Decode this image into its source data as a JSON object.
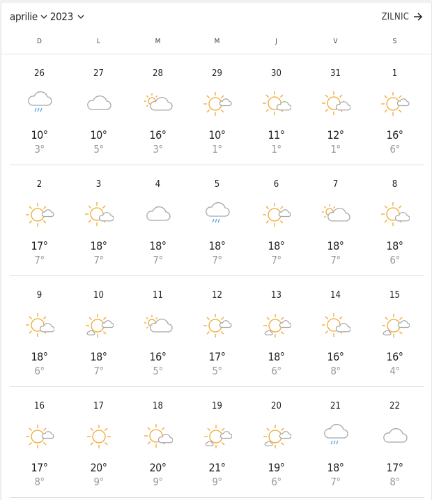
{
  "header": {
    "month": "aprilie",
    "year": "2023",
    "daily_label": "ZILNIC"
  },
  "weekdays": [
    "D",
    "L",
    "M",
    "M",
    "J",
    "V",
    "S"
  ],
  "colors": {
    "sun": "#f0a830",
    "cloud": "#a8a8a8",
    "rain": "#4a9ee0"
  },
  "weeks": [
    [
      {
        "day": "26",
        "icon": "rain",
        "high": "10°",
        "low": "3°"
      },
      {
        "day": "27",
        "icon": "cloudy",
        "high": "10°",
        "low": "5°"
      },
      {
        "day": "28",
        "icon": "partly-cloudy",
        "high": "16°",
        "low": "3°"
      },
      {
        "day": "29",
        "icon": "sun-small-cloud",
        "high": "10°",
        "low": "1°"
      },
      {
        "day": "30",
        "icon": "sun-cloud",
        "high": "11°",
        "low": "1°"
      },
      {
        "day": "31",
        "icon": "sun-cloud",
        "high": "12°",
        "low": "1°"
      },
      {
        "day": "1",
        "icon": "sun-small-cloud",
        "high": "16°",
        "low": "6°"
      }
    ],
    [
      {
        "day": "2",
        "icon": "sun-small-cloud",
        "high": "17°",
        "low": "7°"
      },
      {
        "day": "3",
        "icon": "sun-cloud",
        "high": "18°",
        "low": "7°"
      },
      {
        "day": "4",
        "icon": "cloudy",
        "high": "18°",
        "low": "7°"
      },
      {
        "day": "5",
        "icon": "rain",
        "high": "18°",
        "low": "7°"
      },
      {
        "day": "6",
        "icon": "sun-small-cloud",
        "high": "18°",
        "low": "7°"
      },
      {
        "day": "7",
        "icon": "partly-cloudy",
        "high": "18°",
        "low": "7°"
      },
      {
        "day": "8",
        "icon": "sun-cloud",
        "high": "18°",
        "low": "6°"
      }
    ],
    [
      {
        "day": "9",
        "icon": "sun-cloud",
        "high": "18°",
        "low": "6°"
      },
      {
        "day": "10",
        "icon": "sun-clouds",
        "high": "18°",
        "low": "7°"
      },
      {
        "day": "11",
        "icon": "partly-cloudy",
        "high": "16°",
        "low": "5°"
      },
      {
        "day": "12",
        "icon": "sun-small-cloud",
        "high": "17°",
        "low": "5°"
      },
      {
        "day": "13",
        "icon": "sun-clouds",
        "high": "18°",
        "low": "6°"
      },
      {
        "day": "14",
        "icon": "sun-cloud",
        "high": "16°",
        "low": "8°"
      },
      {
        "day": "15",
        "icon": "sun-clouds",
        "high": "16°",
        "low": "4°"
      }
    ],
    [
      {
        "day": "16",
        "icon": "sun-small-cloud",
        "high": "17°",
        "low": "8°"
      },
      {
        "day": "17",
        "icon": "sunny",
        "high": "20°",
        "low": "9°"
      },
      {
        "day": "18",
        "icon": "sun-cloud",
        "high": "20°",
        "low": "9°"
      },
      {
        "day": "19",
        "icon": "sun-clouds",
        "high": "21°",
        "low": "9°"
      },
      {
        "day": "20",
        "icon": "sun-clouds",
        "high": "19°",
        "low": "6°"
      },
      {
        "day": "21",
        "icon": "rain",
        "high": "18°",
        "low": "7°"
      },
      {
        "day": "22",
        "icon": "cloudy",
        "high": "17°",
        "low": "8°"
      }
    ]
  ]
}
